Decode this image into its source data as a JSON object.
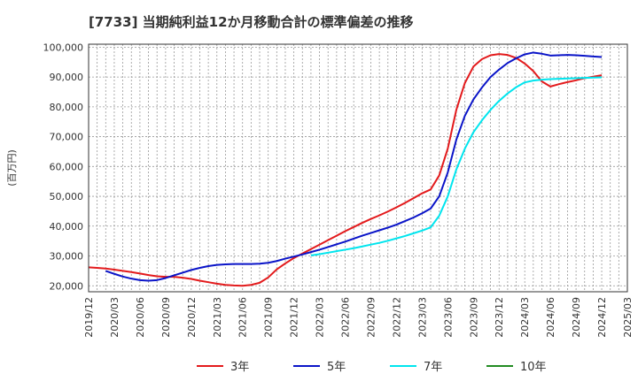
{
  "chart_data": {
    "type": "line",
    "title": "[7733]  当期純利益12か月移動合計の標準偏差の推移",
    "ylabel": "(百万円)",
    "ylim": [
      18000,
      101000
    ],
    "yticks": [
      20000,
      30000,
      40000,
      50000,
      60000,
      70000,
      80000,
      90000,
      100000
    ],
    "ytick_labels": [
      "20,000",
      "30,000",
      "40,000",
      "50,000",
      "60,000",
      "70,000",
      "80,000",
      "90,000",
      "100,000"
    ],
    "xlim": [
      "2019-12",
      "2025-03"
    ],
    "xticks": [
      "2019/12",
      "2020/03",
      "2020/06",
      "2020/09",
      "2020/12",
      "2021/03",
      "2021/06",
      "2021/09",
      "2021/12",
      "2022/03",
      "2022/06",
      "2022/09",
      "2022/12",
      "2023/03",
      "2023/06",
      "2023/09",
      "2023/12",
      "2024/03",
      "2024/06",
      "2024/09",
      "2024/12",
      "2025/03"
    ],
    "grid": true,
    "legend_position": "bottom",
    "series": [
      {
        "name": "3年",
        "color": "#e31a1c",
        "points": [
          [
            "2019-12",
            26200
          ],
          [
            "2020-01",
            26000
          ],
          [
            "2020-02",
            25800
          ],
          [
            "2020-03",
            25400
          ],
          [
            "2020-04",
            25000
          ],
          [
            "2020-05",
            24600
          ],
          [
            "2020-06",
            24100
          ],
          [
            "2020-07",
            23600
          ],
          [
            "2020-08",
            23200
          ],
          [
            "2020-09",
            23000
          ],
          [
            "2020-10",
            23000
          ],
          [
            "2020-11",
            22700
          ],
          [
            "2020-12",
            22300
          ],
          [
            "2021-01",
            21700
          ],
          [
            "2021-02",
            21200
          ],
          [
            "2021-03",
            20700
          ],
          [
            "2021-04",
            20300
          ],
          [
            "2021-05",
            20100
          ],
          [
            "2021-06",
            20000
          ],
          [
            "2021-07",
            20300
          ],
          [
            "2021-08",
            21000
          ],
          [
            "2021-09",
            22800
          ],
          [
            "2021-10",
            25500
          ],
          [
            "2021-11",
            27500
          ],
          [
            "2021-12",
            29300
          ],
          [
            "2022-01",
            30800
          ],
          [
            "2022-02",
            32300
          ],
          [
            "2022-03",
            33800
          ],
          [
            "2022-04",
            35300
          ],
          [
            "2022-05",
            36800
          ],
          [
            "2022-06",
            38300
          ],
          [
            "2022-07",
            39700
          ],
          [
            "2022-08",
            41100
          ],
          [
            "2022-09",
            42400
          ],
          [
            "2022-10",
            43600
          ],
          [
            "2022-11",
            44900
          ],
          [
            "2022-12",
            46300
          ],
          [
            "2023-01",
            47800
          ],
          [
            "2023-02",
            49400
          ],
          [
            "2023-03",
            51000
          ],
          [
            "2023-04",
            52300
          ],
          [
            "2023-05",
            57000
          ],
          [
            "2023-06",
            66000
          ],
          [
            "2023-07",
            79000
          ],
          [
            "2023-08",
            88000
          ],
          [
            "2023-09",
            93500
          ],
          [
            "2023-10",
            96000
          ],
          [
            "2023-11",
            97300
          ],
          [
            "2023-12",
            97700
          ],
          [
            "2024-01",
            97400
          ],
          [
            "2024-02",
            96400
          ],
          [
            "2024-03",
            94500
          ],
          [
            "2024-04",
            92000
          ],
          [
            "2024-05",
            88500
          ],
          [
            "2024-06",
            86800
          ],
          [
            "2024-07",
            87600
          ],
          [
            "2024-08",
            88300
          ],
          [
            "2024-09",
            88900
          ],
          [
            "2024-10",
            89600
          ],
          [
            "2024-11",
            90100
          ],
          [
            "2024-12",
            90600
          ]
        ]
      },
      {
        "name": "5年",
        "color": "#0a14c8",
        "points": [
          [
            "2020-02",
            25000
          ],
          [
            "2020-03",
            24000
          ],
          [
            "2020-04",
            23100
          ],
          [
            "2020-05",
            22400
          ],
          [
            "2020-06",
            21900
          ],
          [
            "2020-07",
            21700
          ],
          [
            "2020-08",
            21900
          ],
          [
            "2020-09",
            22600
          ],
          [
            "2020-10",
            23500
          ],
          [
            "2020-11",
            24400
          ],
          [
            "2020-12",
            25300
          ],
          [
            "2021-01",
            26000
          ],
          [
            "2021-02",
            26600
          ],
          [
            "2021-03",
            27000
          ],
          [
            "2021-04",
            27200
          ],
          [
            "2021-05",
            27300
          ],
          [
            "2021-06",
            27300
          ],
          [
            "2021-07",
            27300
          ],
          [
            "2021-08",
            27400
          ],
          [
            "2021-09",
            27700
          ],
          [
            "2021-10",
            28300
          ],
          [
            "2021-11",
            29100
          ],
          [
            "2021-12",
            29800
          ],
          [
            "2022-01",
            30500
          ],
          [
            "2022-02",
            31300
          ],
          [
            "2022-03",
            32100
          ],
          [
            "2022-04",
            33000
          ],
          [
            "2022-05",
            33900
          ],
          [
            "2022-06",
            34800
          ],
          [
            "2022-07",
            35800
          ],
          [
            "2022-08",
            36800
          ],
          [
            "2022-09",
            37700
          ],
          [
            "2022-10",
            38600
          ],
          [
            "2022-11",
            39500
          ],
          [
            "2022-12",
            40500
          ],
          [
            "2023-01",
            41700
          ],
          [
            "2023-02",
            42900
          ],
          [
            "2023-03",
            44300
          ],
          [
            "2023-04",
            45900
          ],
          [
            "2023-05",
            50000
          ],
          [
            "2023-06",
            58000
          ],
          [
            "2023-07",
            69000
          ],
          [
            "2023-08",
            77000
          ],
          [
            "2023-09",
            82500
          ],
          [
            "2023-10",
            86500
          ],
          [
            "2023-11",
            90000
          ],
          [
            "2023-12",
            92500
          ],
          [
            "2024-01",
            94700
          ],
          [
            "2024-02",
            96300
          ],
          [
            "2024-03",
            97600
          ],
          [
            "2024-04",
            98200
          ],
          [
            "2024-05",
            97800
          ],
          [
            "2024-06",
            97200
          ],
          [
            "2024-07",
            97300
          ],
          [
            "2024-08",
            97400
          ],
          [
            "2024-09",
            97300
          ],
          [
            "2024-10",
            97100
          ],
          [
            "2024-11",
            96900
          ],
          [
            "2024-12",
            96700
          ]
        ]
      },
      {
        "name": "7年",
        "color": "#00e5ee",
        "points": [
          [
            "2022-02",
            30200
          ],
          [
            "2022-03",
            30600
          ],
          [
            "2022-04",
            31100
          ],
          [
            "2022-05",
            31600
          ],
          [
            "2022-06",
            32100
          ],
          [
            "2022-07",
            32600
          ],
          [
            "2022-08",
            33200
          ],
          [
            "2022-09",
            33800
          ],
          [
            "2022-10",
            34400
          ],
          [
            "2022-11",
            35100
          ],
          [
            "2022-12",
            35900
          ],
          [
            "2023-01",
            36700
          ],
          [
            "2023-02",
            37600
          ],
          [
            "2023-03",
            38500
          ],
          [
            "2023-04",
            39600
          ],
          [
            "2023-05",
            43500
          ],
          [
            "2023-06",
            50000
          ],
          [
            "2023-07",
            59000
          ],
          [
            "2023-08",
            66000
          ],
          [
            "2023-09",
            71500
          ],
          [
            "2023-10",
            75500
          ],
          [
            "2023-11",
            79000
          ],
          [
            "2023-12",
            82000
          ],
          [
            "2024-01",
            84500
          ],
          [
            "2024-02",
            86600
          ],
          [
            "2024-03",
            88200
          ],
          [
            "2024-04",
            88800
          ],
          [
            "2024-05",
            89100
          ],
          [
            "2024-06",
            89300
          ],
          [
            "2024-07",
            89400
          ],
          [
            "2024-08",
            89500
          ],
          [
            "2024-09",
            89600
          ],
          [
            "2024-10",
            89700
          ],
          [
            "2024-11",
            89800
          ],
          [
            "2024-12",
            89900
          ]
        ]
      },
      {
        "name": "10年",
        "color": "#228b22",
        "points": []
      }
    ]
  }
}
